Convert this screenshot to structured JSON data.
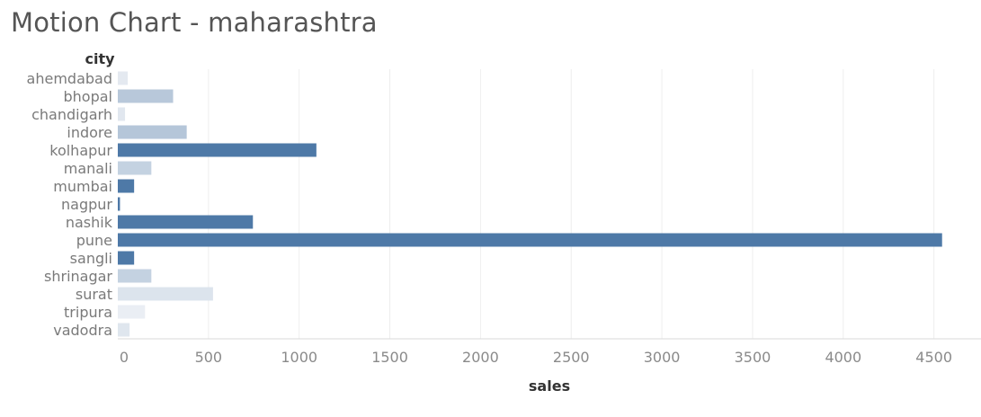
{
  "title": "Motion Chart - maharashtra",
  "chart_data": {
    "type": "bar",
    "orientation": "horizontal",
    "ylabel": "city",
    "xlabel": "sales",
    "xlim": [
      0,
      4700
    ],
    "x_ticks": [
      0,
      500,
      1000,
      1500,
      2000,
      2500,
      3000,
      3500,
      4000,
      4500
    ],
    "grid": true,
    "categories": [
      "ahemdabad",
      "bhopal",
      "chandigarh",
      "indore",
      "kolhapur",
      "manali",
      "mumbai",
      "nagpur",
      "nashik",
      "pune",
      "sangli",
      "shrinagar",
      "surat",
      "tripura",
      "vadodra"
    ],
    "values": [
      55,
      305,
      40,
      380,
      1095,
      185,
      90,
      12,
      745,
      4545,
      90,
      185,
      525,
      150,
      65
    ],
    "colors": [
      "#e4e9f0",
      "#b8c8da",
      "#e1e7ef",
      "#b5c6d9",
      "#4e79a7",
      "#c4d2e1",
      "#4e79a7",
      "#4e79a7",
      "#4e79a7",
      "#4e79a7",
      "#4e79a7",
      "#c4d2e1",
      "#dce4ed",
      "#eaeef4",
      "#dfe6ee"
    ]
  }
}
